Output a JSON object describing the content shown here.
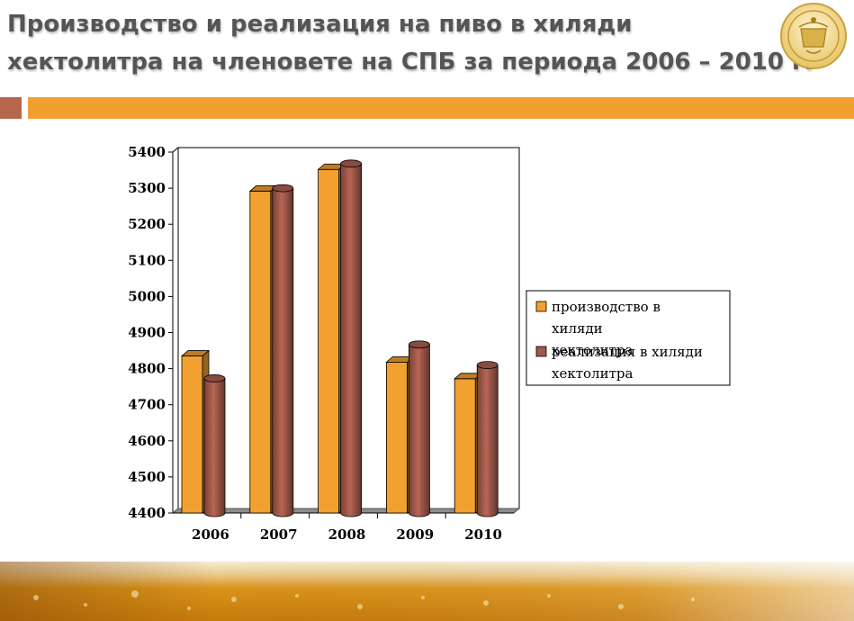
{
  "slide": {
    "title_line1": "Производство и реализация на пиво в хиляди",
    "title_line2": "хектолитра на членовете на СПБ за периода 2006 – 2010 г."
  },
  "logo": {
    "icon": "brewers-union-emblem-icon"
  },
  "colors": {
    "title": "#555555",
    "accent_square": "#B5674D",
    "accent_bar": "#F0A030",
    "series_production": "#F2A030",
    "series_sales": "#A0584A"
  },
  "chart_data": {
    "type": "bar",
    "subtype": "3d-clustered-column",
    "title": "",
    "xlabel": "",
    "ylabel": "",
    "categories": [
      "2006",
      "2007",
      "2008",
      "2009",
      "2010"
    ],
    "series": [
      {
        "name": "производство в хиляди хектолитра",
        "color": "#F2A030",
        "values": [
          4835,
          5292,
          5352,
          4818,
          4772
        ]
      },
      {
        "name": "реализация в хиляди хектолитра",
        "color": "#A0584A",
        "values": [
          4773,
          5300,
          5368,
          4867,
          4810
        ]
      }
    ],
    "ylim": [
      4400,
      5400
    ],
    "yticks": [
      4400,
      4500,
      4600,
      4700,
      4800,
      4900,
      5000,
      5100,
      5200,
      5300,
      5400
    ],
    "grid": true,
    "legend": "right"
  }
}
